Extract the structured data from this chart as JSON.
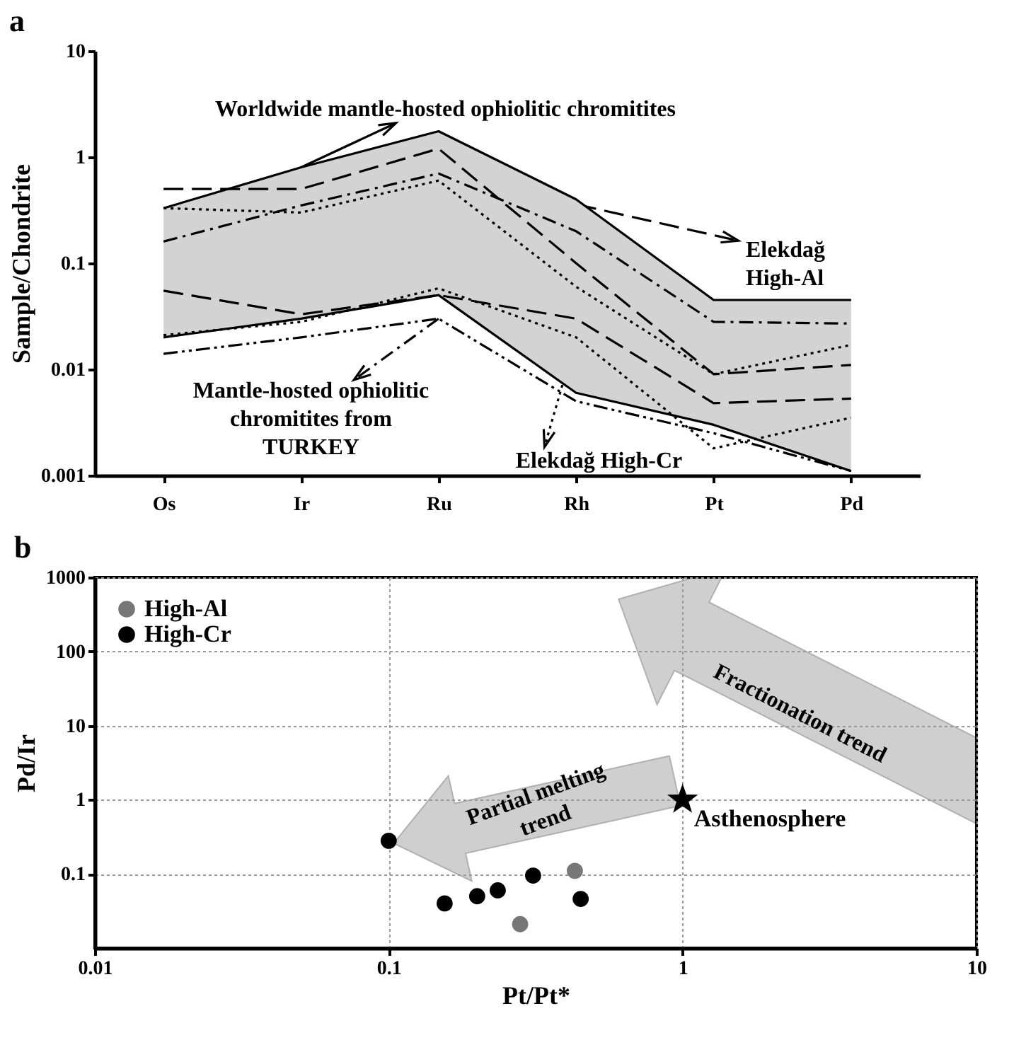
{
  "chart_data": [
    {
      "type": "line",
      "title": "a",
      "ylabel": "Sample/Chondrite",
      "categories": [
        "Os",
        "Ir",
        "Ru",
        "Rh",
        "Pt",
        "Pd"
      ],
      "log": true,
      "ylim": [
        0.001,
        10
      ],
      "yticks": [
        0.001,
        0.01,
        0.1,
        1,
        10
      ],
      "grid": false,
      "annotations": [
        {
          "text": "Worldwide mantle-hosted ophiolitic chromitites",
          "x": "Ir",
          "y": 0.8
        },
        {
          "text": "Elekdağ\nHigh-Al",
          "x": "Ru",
          "y": 0.7
        },
        {
          "text": "Mantle-hosted ophiolitic\nchromitites from\nTURKEY",
          "x": "Ru",
          "y": 0.03
        },
        {
          "text": "Elekdağ High-Cr",
          "x": "Rh",
          "y": 0.02
        }
      ],
      "series": [
        {
          "color": "#000000",
          "line_style": "solid",
          "values": [
            0.33,
            0.8,
            1.75,
            0.4,
            0.045,
            0.045
          ],
          "lower": [
            0.02,
            0.03,
            0.05,
            0.006,
            0.003,
            0.0011
          ],
          "upper": [
            0.33,
            0.8,
            1.75,
            0.4,
            0.045,
            0.045
          ]
        },
        {
          "color": "#000000",
          "line_style": "solid",
          "values": [
            0.02,
            0.03,
            0.05,
            0.006,
            0.003,
            0.0011
          ]
        },
        {
          "color": "#000000",
          "line_style": "dashed",
          "values": [
            0.5,
            0.5,
            1.2,
            0.1,
            0.009,
            0.011
          ]
        },
        {
          "color": "#000000",
          "line_style": "dashed",
          "values": [
            0.055,
            0.033,
            0.05,
            0.03,
            0.0048,
            0.0053
          ]
        },
        {
          "color": "#000000",
          "line_style": "dashdot",
          "values": [
            0.16,
            0.35,
            0.7,
            0.2,
            0.028,
            0.027
          ]
        },
        {
          "color": "#000000",
          "line_style": "dashdotdot",
          "values": [
            0.014,
            0.02,
            0.03,
            0.005,
            0.0025,
            0.0011
          ]
        },
        {
          "color": "#000000",
          "line_style": "dotted",
          "values": [
            0.33,
            0.3,
            0.6,
            0.06,
            0.009,
            0.017
          ]
        },
        {
          "color": "#000000",
          "line_style": "dotted",
          "values": [
            0.021,
            0.028,
            0.058,
            0.02,
            0.0018,
            0.0035
          ]
        }
      ]
    },
    {
      "type": "scatter",
      "title": "b",
      "xlabel": "Pt/Pt*",
      "ylabel": "Pd/Ir",
      "log": "xy",
      "xlim": [
        0.01,
        10
      ],
      "xticks": [
        0.01,
        0.1,
        1,
        10
      ],
      "ylim": [
        0.01,
        1000
      ],
      "yticks": [
        0.1,
        1,
        10,
        100,
        1000
      ],
      "grid": true,
      "legend": "top left",
      "marker": "circle",
      "annotations": [
        "Partial melting\ntrend",
        "Fractionation trend"
      ],
      "series": [
        {
          "name": "High-Al",
          "color": "#777777",
          "x": [
            0.43,
            0.28
          ],
          "values": [
            0.11,
            0.021
          ]
        },
        {
          "name": "High-Cr",
          "color": "#000000",
          "x": [
            0.1,
            0.155,
            0.2,
            0.235,
            0.31,
            0.45
          ],
          "values": [
            0.28,
            0.04,
            0.05,
            0.06,
            0.095,
            0.046
          ]
        },
        {
          "name": "Asthenosphere",
          "color": "#000000",
          "marker": "star",
          "x": [
            1
          ],
          "values": [
            1
          ]
        }
      ]
    }
  ]
}
